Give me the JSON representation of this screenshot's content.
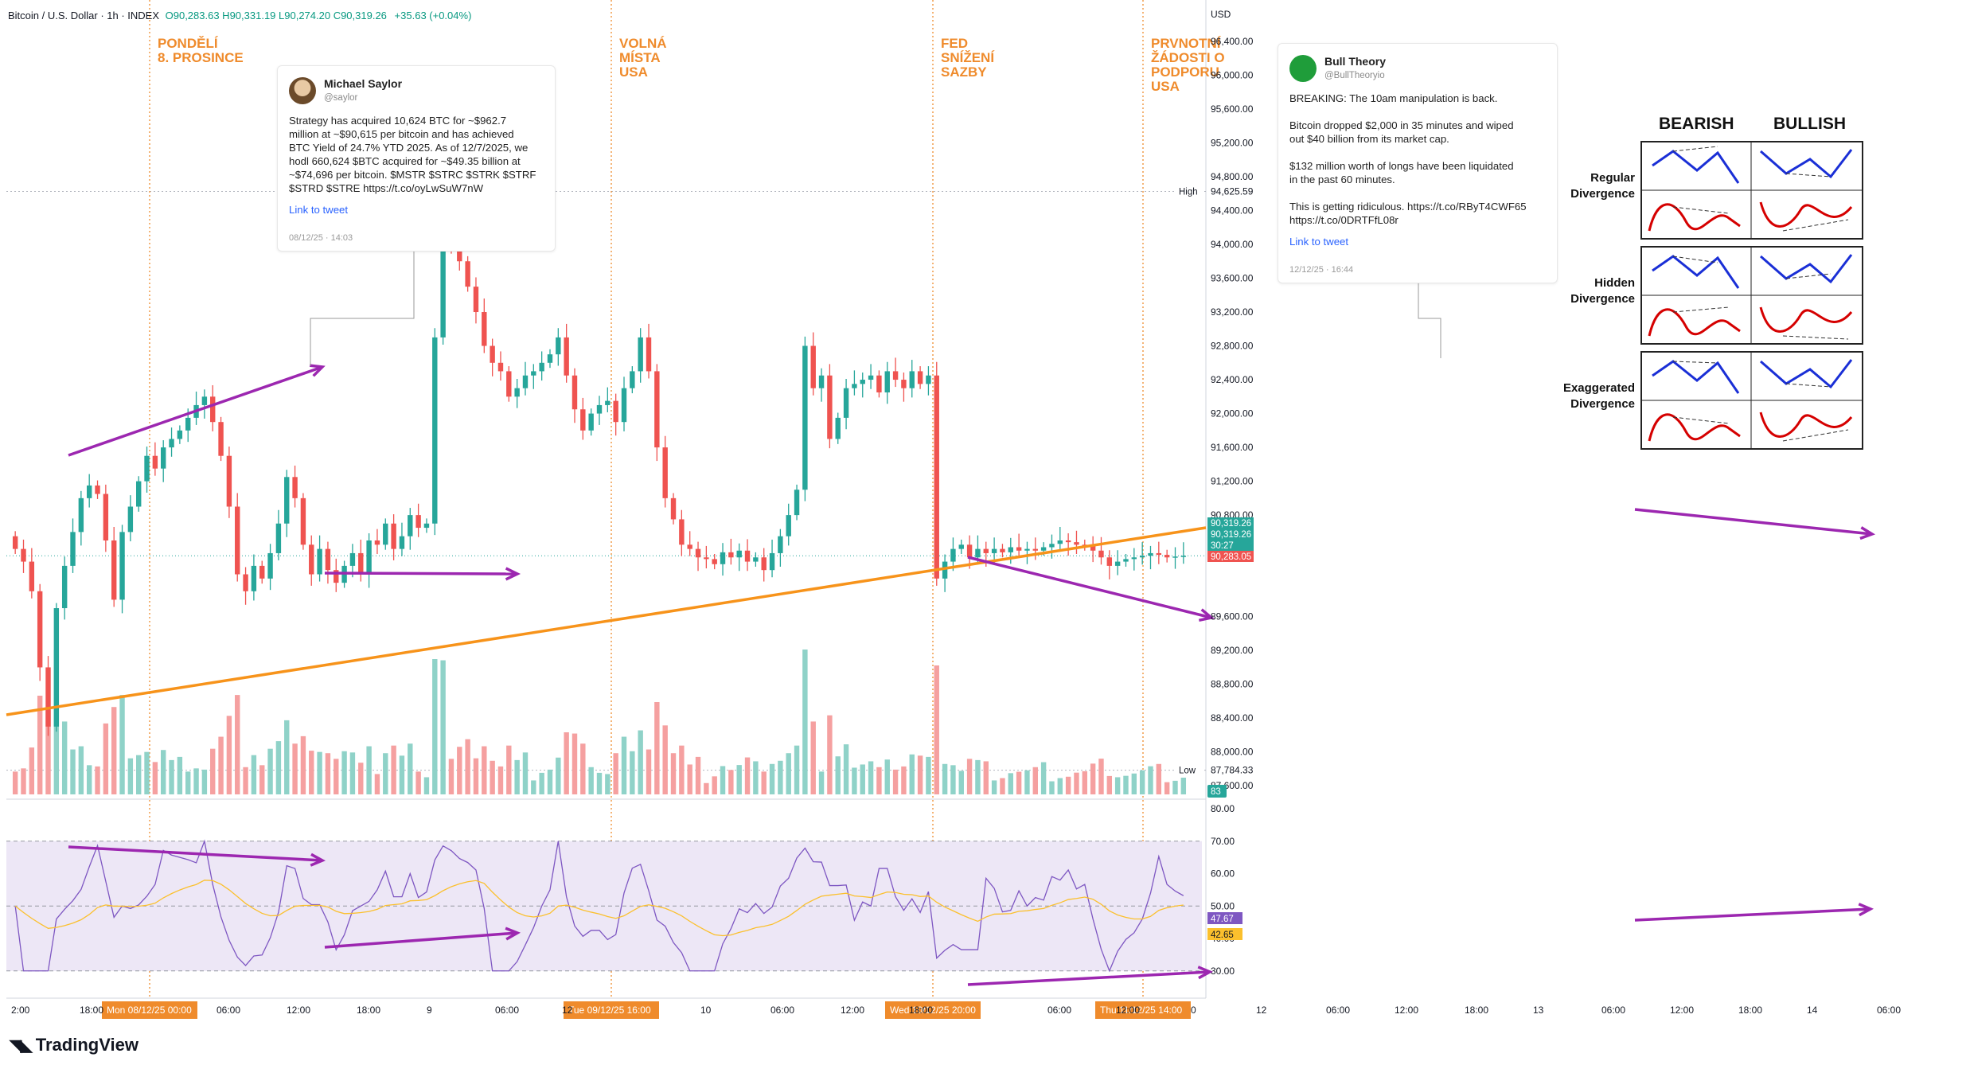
{
  "header": {
    "symbol": "Bitcoin / U.S. Dollar · 1h · INDEX",
    "ohlc": "O90,283.63 H90,331.19 L90,274.20 C90,319.26",
    "change": "+35.63 (+0.04%)"
  },
  "currency": "USD",
  "brand": "TradingView",
  "tweets": [
    {
      "name": "Michael Saylor",
      "handle": "@saylor",
      "text": "Strategy has acquired 10,624 BTC for ~$962.7\nmillion at ~$90,615 per bitcoin and has achieved\nBTC Yield of 24.7% YTD 2025. As of 12/7/2025, we\nhodl 660,624 $BTC acquired for ~$49.35 billion at\n~$74,696 per bitcoin. $MSTR $STRC $STRK $STRF\n$STRD $STRE https://t.co/oyLwSuW7nW",
      "link": "Link to tweet",
      "date": "08/12/25 · 14:03"
    },
    {
      "name": "Bull Theory",
      "handle": "@BullTheoryio",
      "text": "BREAKING: The 10am manipulation is back.\n\nBitcoin dropped $2,000 in 35 minutes and wiped\nout $40 billion from its market cap.\n\n$132 million worth of longs have been liquidated\nin the past 60 minutes.\n\nThis is getting ridiculous. https://t.co/RByT4CWF65\nhttps://t.co/0DRTFfL08r",
      "link": "Link to tweet",
      "date": "12/12/25 · 16:44"
    }
  ],
  "event_labels": [
    {
      "lines": [
        "PONDĚLÍ",
        "8. PROSINCE"
      ],
      "time_label": "Mon 08/12/25   00:00"
    },
    {
      "lines": [
        "VOLNÁ",
        "MÍSTA",
        "USA"
      ],
      "time_label": "Tue 09/12/25   16:00"
    },
    {
      "lines": [
        "FED",
        "SNÍŽENÍ",
        "SAZBY"
      ],
      "time_label": "Wed 10/12/25   20:00"
    },
    {
      "lines": [
        "PRVNOTNÍ",
        "ŽÁDOSTI O",
        "PODPORU",
        "USA"
      ],
      "time_label": "Thu 11/12/25   14:00"
    }
  ],
  "divergence_legend": {
    "col_bearish": "BEARISH",
    "col_bullish": "BULLISH",
    "rows": [
      "Regular\nDivergence",
      "Hidden\nDivergence",
      "Exaggerated\nDivergence"
    ]
  },
  "price_axis": {
    "tick_labels": [
      "96,400.00",
      "96,000.00",
      "95,600.00",
      "95,200.00",
      "94,800.00",
      "94,400.00",
      "94,000.00",
      "93,600.00",
      "93,200.00",
      "92,800.00",
      "92,400.00",
      "92,000.00",
      "91,600.00",
      "91,200.00",
      "90,800.00",
      "89,600.00",
      "89,200.00",
      "88,800.00",
      "88,400.00",
      "88,000.00",
      "87,600.00"
    ],
    "high_label": "High",
    "high_value": "94,625.59",
    "low_label": "Low",
    "low_value": "87,784.33",
    "current_badges": [
      "90,319.26",
      "90,319.26",
      "30:27",
      "90,283.05"
    ],
    "volume_badge": "83"
  },
  "rsi_axis": {
    "tick_labels": [
      "80.00",
      "70.00",
      "60.00",
      "50.00",
      "40.00",
      "30.00"
    ],
    "rsi_value": "47.67",
    "ma_value": "42.65"
  },
  "time_axis": {
    "tick_labels": [
      "2:00",
      "18:00",
      "06:00",
      "12:00",
      "18:00",
      "9",
      "06:00",
      "12",
      "10",
      "06:00",
      "12:00",
      "18:00",
      "06:00",
      "12:00",
      "0",
      "12",
      "06:00",
      "12:00",
      "18:00",
      "13",
      "06:00",
      "12:00",
      "18:00",
      "14",
      "06:00"
    ]
  },
  "colors": {
    "up": "#26a69a",
    "down": "#ef5350",
    "vol_up": "#8fd2c8",
    "vol_down": "#f5a0a0",
    "trendline": "#f7931a",
    "divergence": "#9c27b0",
    "event": "#ef8b2c",
    "rsi": "#7e57c2",
    "rsi_ma": "#fbc02d",
    "rsi_band": "#ede7f6"
  },
  "chart_data": {
    "type": "candlestick",
    "series_name": "Bitcoin / U.S. Dollar",
    "interval": "1h",
    "x_range": [
      "2025-12-07 12:00",
      "2025-12-14 06:00"
    ],
    "ylim": [
      87480,
      96700
    ],
    "close": [
      90400,
      90250,
      89900,
      89000,
      88300,
      89700,
      90200,
      90600,
      91000,
      91150,
      91050,
      90500,
      89800,
      90600,
      90900,
      91200,
      91500,
      91350,
      91600,
      91700,
      91800,
      91950,
      92100,
      92200,
      91900,
      91500,
      90900,
      90100,
      89900,
      90200,
      90050,
      90350,
      90700,
      91250,
      91000,
      90450,
      90100,
      90400,
      90150,
      90000,
      90200,
      90350,
      90100,
      90500,
      90450,
      90700,
      90400,
      90550,
      90800,
      90650,
      90700,
      92900,
      94200,
      94050,
      93800,
      93500,
      93200,
      92800,
      92600,
      92500,
      92200,
      92300,
      92450,
      92500,
      92600,
      92700,
      92900,
      92450,
      92050,
      91800,
      92000,
      92100,
      92150,
      91900,
      92300,
      92500,
      92900,
      92500,
      91600,
      91000,
      90750,
      90450,
      90400,
      90300,
      90280,
      90220,
      90360,
      90300,
      90380,
      90250,
      90300,
      90150,
      90350,
      90550,
      90800,
      91100,
      92800,
      92300,
      92450,
      91700,
      91950,
      92300,
      92350,
      92400,
      92450,
      92250,
      92500,
      92400,
      92300,
      92500,
      92350,
      92450,
      90050,
      90250,
      90400,
      90450,
      90300,
      90400,
      90350,
      90400,
      90360,
      90420,
      90380,
      90400,
      90380,
      90420,
      90460,
      90500,
      90480,
      90450,
      90440,
      90380,
      90300,
      90200,
      90250,
      90280,
      90300,
      90320,
      90350,
      90330,
      90300,
      90310,
      90319
    ],
    "rsi": {
      "name": "RSI",
      "overbought": 70,
      "oversold": 30,
      "mid": 50,
      "ylim": [
        27,
        80
      ]
    },
    "divergences": [
      {
        "kind": "regular bearish",
        "price": "rising highs",
        "rsi": "falling highs"
      },
      {
        "kind": "regular bullish",
        "price": "equal lows",
        "rsi": "rising lows"
      },
      {
        "kind": "regular bullish",
        "price": "falling lows",
        "rsi": "rising lows"
      },
      {
        "kind": "bullish",
        "price": "falling highs",
        "rsi": "rising highs"
      }
    ]
  }
}
